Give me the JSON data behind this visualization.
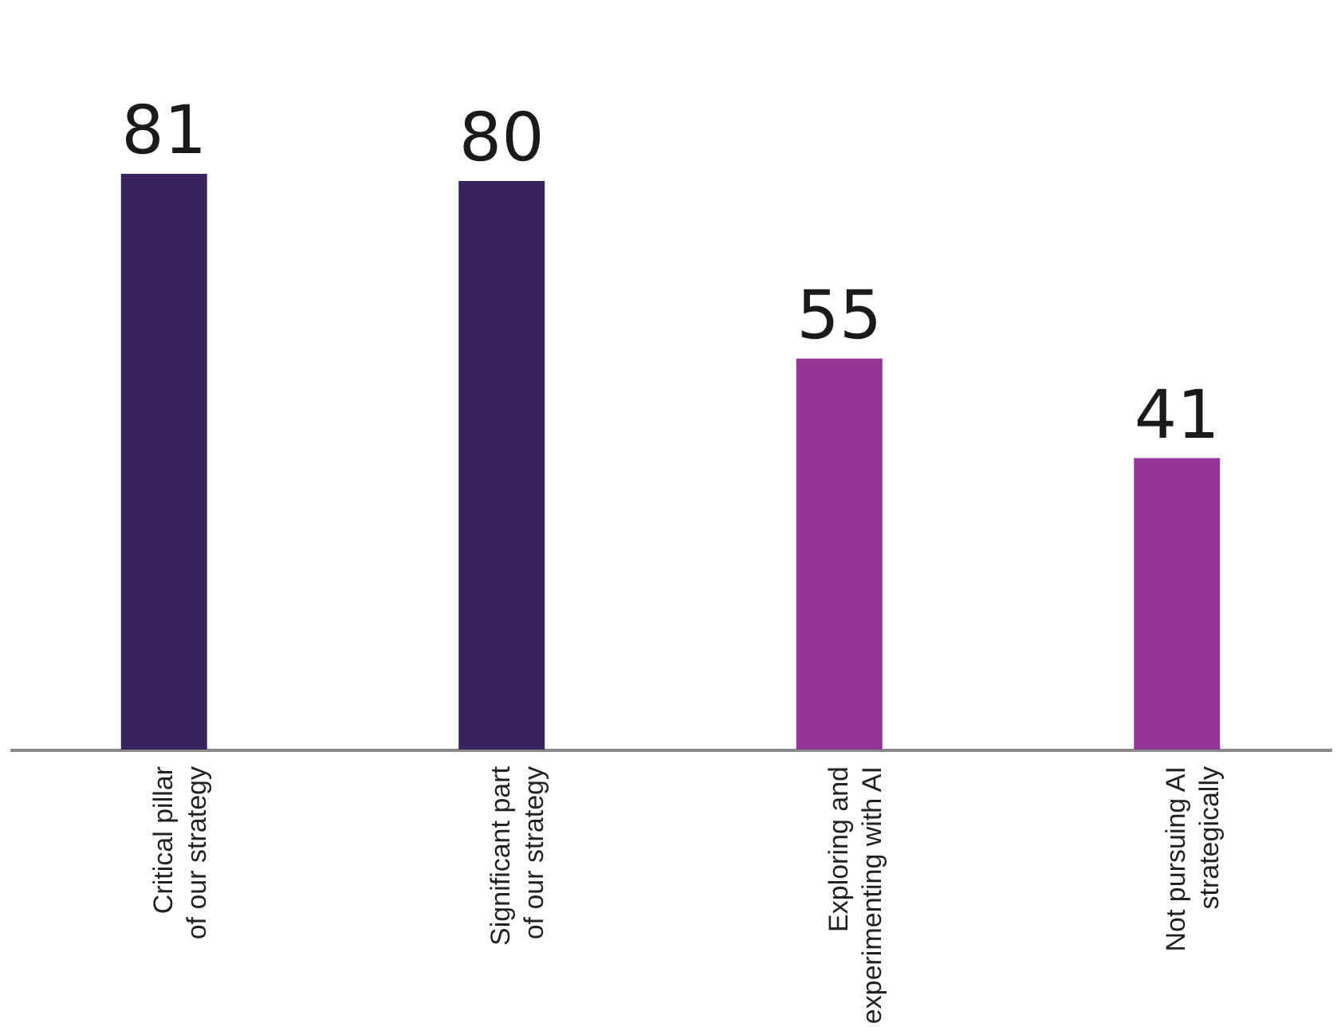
{
  "chart_data": {
    "type": "bar",
    "categories": [
      "Critical pillar of our strategy",
      "Significant part of our strategy",
      "Exploring and experimenting with AI",
      "Not pursuing AI strategically"
    ],
    "values": [
      81,
      80,
      55,
      41
    ],
    "colors": [
      "#39245e",
      "#39245e",
      "#943694",
      "#943694"
    ],
    "data_labels": true
  }
}
